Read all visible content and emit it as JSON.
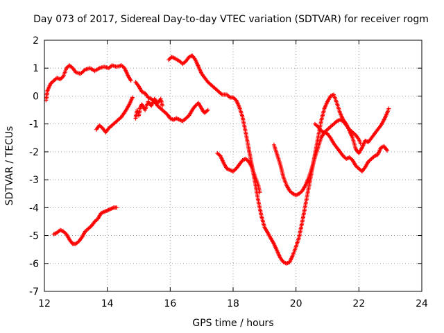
{
  "chart_data": {
    "type": "scatter",
    "title": "Day 073 of 2017, Sidereal Day-to-day VTEC variation (SDTVAR) for receiver rogm",
    "xlabel": "GPS time / hours",
    "ylabel": "SDTVAR / TECUs",
    "xlim": [
      12,
      24
    ],
    "ylim": [
      -7,
      2
    ],
    "xticks": [
      12,
      14,
      16,
      18,
      20,
      22,
      24
    ],
    "xtick_labels": [
      "12",
      "14",
      "16",
      "18",
      "20",
      "22",
      "24"
    ],
    "yticks": [
      2,
      1,
      0,
      -1,
      -2,
      -3,
      -4,
      -5,
      -6,
      -7
    ],
    "ytick_labels": [
      "2",
      "1",
      "0",
      "-1",
      "-2",
      "-3",
      "-4",
      "-5",
      "-6",
      "-7"
    ],
    "grid": true,
    "marker": "+",
    "color": "#ff0000",
    "series": [
      {
        "name": "s1",
        "points": [
          [
            12.05,
            -0.15
          ],
          [
            12.1,
            0.2
          ],
          [
            12.2,
            0.45
          ],
          [
            12.3,
            0.55
          ],
          [
            12.4,
            0.65
          ],
          [
            12.5,
            0.6
          ],
          [
            12.6,
            0.7
          ],
          [
            12.7,
            1.0
          ],
          [
            12.8,
            1.1
          ],
          [
            12.9,
            1.0
          ],
          [
            13.0,
            0.85
          ],
          [
            13.15,
            0.8
          ],
          [
            13.3,
            0.95
          ],
          [
            13.45,
            1.0
          ],
          [
            13.6,
            0.9
          ],
          [
            13.75,
            1.0
          ],
          [
            13.9,
            1.05
          ],
          [
            14.05,
            1.0
          ],
          [
            14.15,
            1.1
          ],
          [
            14.3,
            1.05
          ],
          [
            14.45,
            1.1
          ],
          [
            14.55,
            1.0
          ],
          [
            14.65,
            0.75
          ],
          [
            14.75,
            0.55
          ]
        ]
      },
      {
        "name": "s2",
        "points": [
          [
            12.3,
            -4.95
          ],
          [
            12.4,
            -4.9
          ],
          [
            12.5,
            -4.8
          ],
          [
            12.6,
            -4.85
          ],
          [
            12.7,
            -4.95
          ],
          [
            12.8,
            -5.15
          ],
          [
            12.9,
            -5.3
          ],
          [
            13.0,
            -5.3
          ],
          [
            13.1,
            -5.2
          ],
          [
            13.2,
            -5.05
          ],
          [
            13.3,
            -4.85
          ],
          [
            13.4,
            -4.75
          ],
          [
            13.5,
            -4.65
          ],
          [
            13.6,
            -4.5
          ],
          [
            13.7,
            -4.4
          ],
          [
            13.8,
            -4.2
          ],
          [
            13.9,
            -4.15
          ],
          [
            14.0,
            -4.1
          ],
          [
            14.1,
            -4.05
          ],
          [
            14.2,
            -4.0
          ],
          [
            14.3,
            -4.0
          ]
        ]
      },
      {
        "name": "s3",
        "points": [
          [
            13.65,
            -1.2
          ],
          [
            13.75,
            -1.05
          ],
          [
            13.85,
            -1.15
          ],
          [
            13.95,
            -1.3
          ],
          [
            14.05,
            -1.15
          ],
          [
            14.15,
            -1.05
          ],
          [
            14.3,
            -0.9
          ],
          [
            14.45,
            -0.75
          ],
          [
            14.6,
            -0.5
          ],
          [
            14.7,
            -0.3
          ],
          [
            14.8,
            -0.05
          ]
        ]
      },
      {
        "name": "s4",
        "points": [
          [
            14.9,
            -0.8
          ],
          [
            14.95,
            -0.5
          ],
          [
            15.0,
            -0.7
          ],
          [
            15.05,
            -0.4
          ],
          [
            15.1,
            -0.3
          ],
          [
            15.2,
            -0.5
          ],
          [
            15.3,
            -0.2
          ],
          [
            15.4,
            -0.35
          ],
          [
            15.5,
            -0.1
          ],
          [
            15.6,
            -0.25
          ],
          [
            15.7,
            -0.1
          ],
          [
            15.75,
            -0.35
          ]
        ]
      },
      {
        "name": "s5",
        "points": [
          [
            14.9,
            0.5
          ],
          [
            15.0,
            0.35
          ],
          [
            15.1,
            0.15
          ],
          [
            15.2,
            0.1
          ],
          [
            15.3,
            -0.05
          ],
          [
            15.4,
            -0.1
          ],
          [
            15.5,
            -0.2
          ],
          [
            15.6,
            -0.35
          ],
          [
            15.7,
            -0.45
          ],
          [
            15.8,
            -0.55
          ],
          [
            15.9,
            -0.65
          ],
          [
            16.0,
            -0.8
          ],
          [
            16.1,
            -0.85
          ],
          [
            16.2,
            -0.8
          ],
          [
            16.3,
            -0.85
          ],
          [
            16.4,
            -0.9
          ],
          [
            16.5,
            -0.8
          ],
          [
            16.6,
            -0.7
          ],
          [
            16.7,
            -0.5
          ],
          [
            16.8,
            -0.35
          ],
          [
            16.9,
            -0.25
          ],
          [
            17.0,
            -0.45
          ],
          [
            17.05,
            -0.55
          ],
          [
            17.1,
            -0.6
          ],
          [
            17.2,
            -0.5
          ]
        ]
      },
      {
        "name": "s6",
        "points": [
          [
            15.95,
            1.3
          ],
          [
            16.05,
            1.4
          ],
          [
            16.15,
            1.35
          ],
          [
            16.3,
            1.25
          ],
          [
            16.4,
            1.15
          ],
          [
            16.5,
            1.25
          ],
          [
            16.6,
            1.4
          ],
          [
            16.7,
            1.45
          ],
          [
            16.8,
            1.3
          ],
          [
            16.9,
            1.05
          ],
          [
            17.0,
            0.8
          ],
          [
            17.1,
            0.65
          ],
          [
            17.2,
            0.5
          ],
          [
            17.35,
            0.35
          ],
          [
            17.5,
            0.2
          ],
          [
            17.65,
            0.05
          ],
          [
            17.8,
            0.05
          ],
          [
            17.9,
            -0.05
          ],
          [
            18.0,
            -0.05
          ],
          [
            18.1,
            -0.15
          ],
          [
            18.2,
            -0.4
          ],
          [
            18.3,
            -0.75
          ],
          [
            18.4,
            -1.3
          ],
          [
            18.5,
            -1.9
          ],
          [
            18.6,
            -2.5
          ],
          [
            18.7,
            -3.1
          ],
          [
            18.8,
            -3.75
          ],
          [
            18.9,
            -4.3
          ],
          [
            19.0,
            -4.7
          ],
          [
            19.1,
            -4.9
          ],
          [
            19.2,
            -5.1
          ],
          [
            19.3,
            -5.3
          ],
          [
            19.4,
            -5.55
          ],
          [
            19.5,
            -5.8
          ],
          [
            19.6,
            -5.95
          ],
          [
            19.7,
            -6.0
          ],
          [
            19.8,
            -5.95
          ],
          [
            19.9,
            -5.7
          ],
          [
            20.0,
            -5.4
          ],
          [
            20.1,
            -5.05
          ],
          [
            20.2,
            -4.5
          ],
          [
            20.3,
            -3.9
          ],
          [
            20.4,
            -3.3
          ],
          [
            20.5,
            -2.7
          ],
          [
            20.6,
            -2.1
          ],
          [
            20.7,
            -1.5
          ],
          [
            20.8,
            -0.9
          ],
          [
            20.9,
            -0.45
          ],
          [
            21.0,
            -0.2
          ],
          [
            21.1,
            0.0
          ],
          [
            21.2,
            0.05
          ],
          [
            21.3,
            -0.25
          ],
          [
            21.4,
            -0.6
          ],
          [
            21.5,
            -0.85
          ],
          [
            21.6,
            -1.0
          ],
          [
            21.7,
            -1.25
          ],
          [
            21.8,
            -1.5
          ],
          [
            21.9,
            -1.9
          ],
          [
            22.0,
            -2.05
          ],
          [
            22.1,
            -1.85
          ],
          [
            22.2,
            -1.6
          ],
          [
            22.3,
            -1.65
          ],
          [
            22.4,
            -1.5
          ],
          [
            22.5,
            -1.35
          ],
          [
            22.6,
            -1.2
          ],
          [
            22.7,
            -1.05
          ],
          [
            22.8,
            -0.85
          ],
          [
            22.9,
            -0.6
          ],
          [
            22.95,
            -0.45
          ]
        ]
      },
      {
        "name": "s7",
        "points": [
          [
            17.5,
            -2.05
          ],
          [
            17.6,
            -2.15
          ],
          [
            17.7,
            -2.4
          ],
          [
            17.8,
            -2.6
          ],
          [
            17.9,
            -2.65
          ],
          [
            18.0,
            -2.7
          ],
          [
            18.1,
            -2.6
          ],
          [
            18.2,
            -2.45
          ],
          [
            18.3,
            -2.3
          ],
          [
            18.4,
            -2.25
          ],
          [
            18.5,
            -2.35
          ],
          [
            18.6,
            -2.55
          ],
          [
            18.7,
            -2.9
          ],
          [
            18.8,
            -3.2
          ],
          [
            18.85,
            -3.45
          ]
        ]
      },
      {
        "name": "s8",
        "points": [
          [
            19.3,
            -1.75
          ],
          [
            19.4,
            -2.1
          ],
          [
            19.5,
            -2.45
          ],
          [
            19.6,
            -2.9
          ],
          [
            19.7,
            -3.2
          ],
          [
            19.8,
            -3.4
          ],
          [
            19.9,
            -3.5
          ],
          [
            20.0,
            -3.55
          ],
          [
            20.1,
            -3.5
          ],
          [
            20.2,
            -3.4
          ],
          [
            20.3,
            -3.2
          ],
          [
            20.4,
            -2.95
          ],
          [
            20.5,
            -2.6
          ],
          [
            20.6,
            -2.2
          ],
          [
            20.7,
            -1.85
          ],
          [
            20.8,
            -1.5
          ],
          [
            20.9,
            -1.3
          ],
          [
            21.0,
            -1.2
          ],
          [
            21.1,
            -1.1
          ],
          [
            21.2,
            -1.0
          ],
          [
            21.3,
            -0.9
          ],
          [
            21.4,
            -0.85
          ],
          [
            21.5,
            -0.9
          ],
          [
            21.6,
            -1.05
          ],
          [
            21.7,
            -1.2
          ],
          [
            21.8,
            -1.3
          ],
          [
            21.9,
            -1.4
          ],
          [
            22.0,
            -1.55
          ],
          [
            22.05,
            -1.7
          ]
        ]
      },
      {
        "name": "s9",
        "points": [
          [
            20.6,
            -1.0
          ],
          [
            20.7,
            -1.1
          ],
          [
            20.8,
            -1.25
          ],
          [
            20.9,
            -1.3
          ],
          [
            21.0,
            -1.35
          ],
          [
            21.1,
            -1.5
          ],
          [
            21.2,
            -1.7
          ],
          [
            21.3,
            -1.85
          ],
          [
            21.4,
            -2.0
          ],
          [
            21.5,
            -2.15
          ],
          [
            21.6,
            -2.25
          ],
          [
            21.7,
            -2.2
          ],
          [
            21.8,
            -2.3
          ],
          [
            21.9,
            -2.5
          ],
          [
            22.0,
            -2.6
          ],
          [
            22.1,
            -2.7
          ],
          [
            22.2,
            -2.55
          ],
          [
            22.3,
            -2.35
          ],
          [
            22.4,
            -2.25
          ],
          [
            22.5,
            -2.15
          ],
          [
            22.6,
            -2.1
          ],
          [
            22.7,
            -1.85
          ],
          [
            22.8,
            -1.8
          ],
          [
            22.9,
            -1.95
          ]
        ]
      }
    ]
  }
}
